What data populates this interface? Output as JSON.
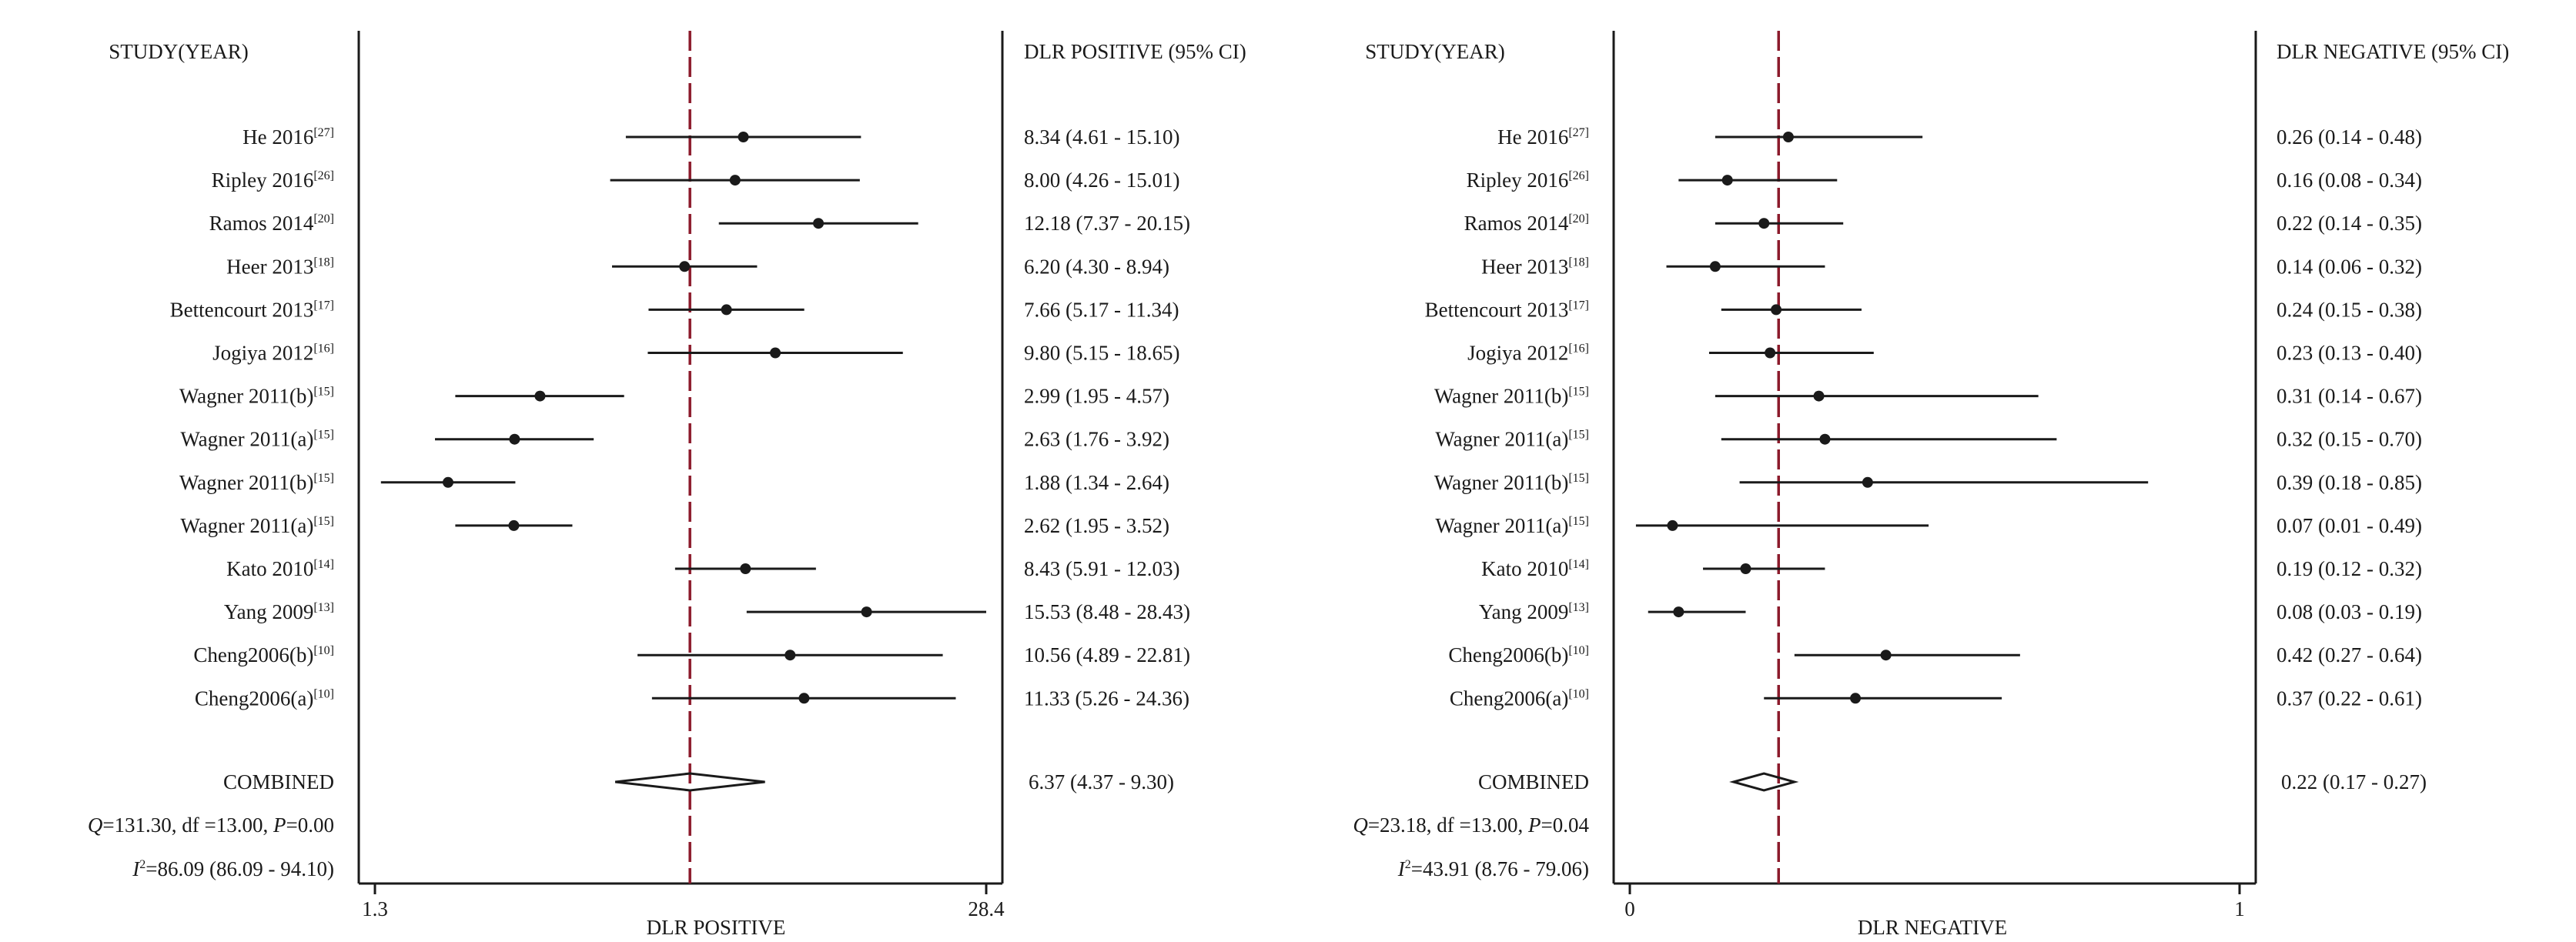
{
  "colors": {
    "ink": "#1a1a1a",
    "reference_line": "#8b1a2b",
    "background": "#ffffff"
  },
  "panels": [
    {
      "study_header": "STUDY(YEAR)",
      "ci_header": "DLR POSITIVE (95% CI)",
      "axis_label": "DLR POSITIVE",
      "tick_labels": [
        "1.3",
        "28.4"
      ],
      "combined_label": "COMBINED",
      "combined_ci": "6.37 (4.37 - 9.30)",
      "het_q": "131.30",
      "het_df": "13.00",
      "het_p": "0.00",
      "het_i2": "86.09 (86.09 - 94.10)",
      "studies": [
        {
          "name": "He 2016",
          "ref": "[27]",
          "ci_text": "8.34 (4.61 - 15.10)"
        },
        {
          "name": "Ripley 2016",
          "ref": "[26]",
          "ci_text": "8.00 (4.26 - 15.01)"
        },
        {
          "name": "Ramos 2014",
          "ref": "[20]",
          "ci_text": "12.18 (7.37 - 20.15)"
        },
        {
          "name": "Heer 2013",
          "ref": "[18]",
          "ci_text": "6.20 (4.30 - 8.94)"
        },
        {
          "name": "Bettencourt 2013",
          "ref": "[17]",
          "ci_text": "7.66 (5.17 - 11.34)"
        },
        {
          "name": "Jogiya 2012",
          "ref": "[16]",
          "ci_text": "9.80 (5.15 - 18.65)"
        },
        {
          "name": "Wagner 2011(b)",
          "ref": "[15]",
          "ci_text": "2.99 (1.95 - 4.57)"
        },
        {
          "name": "Wagner 2011(a)",
          "ref": "[15]",
          "ci_text": "2.63 (1.76 - 3.92)"
        },
        {
          "name": "Wagner 2011(b)",
          "ref": "[15]",
          "ci_text": "1.88 (1.34 - 2.64)"
        },
        {
          "name": "Wagner 2011(a)",
          "ref": "[15]",
          "ci_text": "2.62 (1.95 - 3.52)"
        },
        {
          "name": "Kato 2010",
          "ref": "[14]",
          "ci_text": "8.43 (5.91 - 12.03)"
        },
        {
          "name": "Yang 2009",
          "ref": "[13]",
          "ci_text": "15.53 (8.48 - 28.43)"
        },
        {
          "name": "Cheng2006(b)",
          "ref": "[10]",
          "ci_text": "10.56 (4.89 - 22.81)"
        },
        {
          "name": "Cheng2006(a)",
          "ref": "[10]",
          "ci_text": "11.33 (5.26 - 24.36)"
        }
      ]
    },
    {
      "study_header": "STUDY(YEAR)",
      "ci_header": "DLR NEGATIVE (95% CI)",
      "axis_label": "DLR NEGATIVE",
      "tick_labels": [
        "0",
        "1"
      ],
      "combined_label": "COMBINED",
      "combined_ci": "0.22 (0.17 - 0.27)",
      "het_q": "23.18",
      "het_df": "13.00",
      "het_p": "0.04",
      "het_i2": "43.91 (8.76 - 79.06)",
      "studies": [
        {
          "name": "He 2016",
          "ref": "[27]",
          "ci_text": "0.26 (0.14 - 0.48)"
        },
        {
          "name": "Ripley 2016",
          "ref": "[26]",
          "ci_text": "0.16 (0.08 - 0.34)"
        },
        {
          "name": "Ramos 2014",
          "ref": "[20]",
          "ci_text": "0.22 (0.14 - 0.35)"
        },
        {
          "name": "Heer 2013",
          "ref": "[18]",
          "ci_text": "0.14 (0.06 - 0.32)"
        },
        {
          "name": "Bettencourt 2013",
          "ref": "[17]",
          "ci_text": "0.24 (0.15 - 0.38)"
        },
        {
          "name": "Jogiya 2012",
          "ref": "[16]",
          "ci_text": "0.23 (0.13 - 0.40)"
        },
        {
          "name": "Wagner 2011(b)",
          "ref": "[15]",
          "ci_text": "0.31 (0.14 - 0.67)"
        },
        {
          "name": "Wagner 2011(a)",
          "ref": "[15]",
          "ci_text": "0.32 (0.15 - 0.70)"
        },
        {
          "name": "Wagner 2011(b)",
          "ref": "[15]",
          "ci_text": "0.39 (0.18 - 0.85)"
        },
        {
          "name": "Wagner 2011(a)",
          "ref": "[15]",
          "ci_text": "0.07 (0.01 - 0.49)"
        },
        {
          "name": "Kato 2010",
          "ref": "[14]",
          "ci_text": "0.19 (0.12 - 0.32)"
        },
        {
          "name": "Yang 2009",
          "ref": "[13]",
          "ci_text": "0.08 (0.03 - 0.19)"
        },
        {
          "name": "Cheng2006(b)",
          "ref": "[10]",
          "ci_text": "0.42 (0.27 - 0.64)"
        },
        {
          "name": "Cheng2006(a)",
          "ref": "[10]",
          "ci_text": "0.37 (0.22 - 0.61)"
        }
      ]
    }
  ],
  "chart_data": [
    {
      "type": "forest",
      "xlabel": "DLR POSITIVE",
      "log_scale": true,
      "xlim": [
        1.3,
        28.4
      ],
      "reference_value": 6.37,
      "combined": {
        "estimate": 6.37,
        "lower": 4.37,
        "upper": 9.3
      },
      "studies": [
        {
          "estimate": 8.34,
          "lower": 4.61,
          "upper": 15.1
        },
        {
          "estimate": 8.0,
          "lower": 4.26,
          "upper": 15.01
        },
        {
          "estimate": 12.18,
          "lower": 7.37,
          "upper": 20.15
        },
        {
          "estimate": 6.2,
          "lower": 4.3,
          "upper": 8.94
        },
        {
          "estimate": 7.66,
          "lower": 5.17,
          "upper": 11.34
        },
        {
          "estimate": 9.8,
          "lower": 5.15,
          "upper": 18.65
        },
        {
          "estimate": 2.99,
          "lower": 1.95,
          "upper": 4.57
        },
        {
          "estimate": 2.63,
          "lower": 1.76,
          "upper": 3.92
        },
        {
          "estimate": 1.88,
          "lower": 1.34,
          "upper": 2.64
        },
        {
          "estimate": 2.62,
          "lower": 1.95,
          "upper": 3.52
        },
        {
          "estimate": 8.43,
          "lower": 5.91,
          "upper": 12.03
        },
        {
          "estimate": 15.53,
          "lower": 8.48,
          "upper": 28.43
        },
        {
          "estimate": 10.56,
          "lower": 4.89,
          "upper": 22.81
        },
        {
          "estimate": 11.33,
          "lower": 5.26,
          "upper": 24.36
        }
      ]
    },
    {
      "type": "forest",
      "xlabel": "DLR NEGATIVE",
      "log_scale": false,
      "xlim": [
        0,
        1
      ],
      "reference_value": 0.244,
      "combined": {
        "estimate": 0.22,
        "lower": 0.17,
        "upper": 0.27
      },
      "studies": [
        {
          "estimate": 0.26,
          "lower": 0.14,
          "upper": 0.48
        },
        {
          "estimate": 0.16,
          "lower": 0.08,
          "upper": 0.34
        },
        {
          "estimate": 0.22,
          "lower": 0.14,
          "upper": 0.35
        },
        {
          "estimate": 0.14,
          "lower": 0.06,
          "upper": 0.32
        },
        {
          "estimate": 0.24,
          "lower": 0.15,
          "upper": 0.38
        },
        {
          "estimate": 0.23,
          "lower": 0.13,
          "upper": 0.4
        },
        {
          "estimate": 0.31,
          "lower": 0.14,
          "upper": 0.67
        },
        {
          "estimate": 0.32,
          "lower": 0.15,
          "upper": 0.7
        },
        {
          "estimate": 0.39,
          "lower": 0.18,
          "upper": 0.85
        },
        {
          "estimate": 0.07,
          "lower": 0.01,
          "upper": 0.49
        },
        {
          "estimate": 0.19,
          "lower": 0.12,
          "upper": 0.32
        },
        {
          "estimate": 0.08,
          "lower": 0.03,
          "upper": 0.19
        },
        {
          "estimate": 0.42,
          "lower": 0.27,
          "upper": 0.64
        },
        {
          "estimate": 0.37,
          "lower": 0.22,
          "upper": 0.61
        }
      ]
    }
  ]
}
